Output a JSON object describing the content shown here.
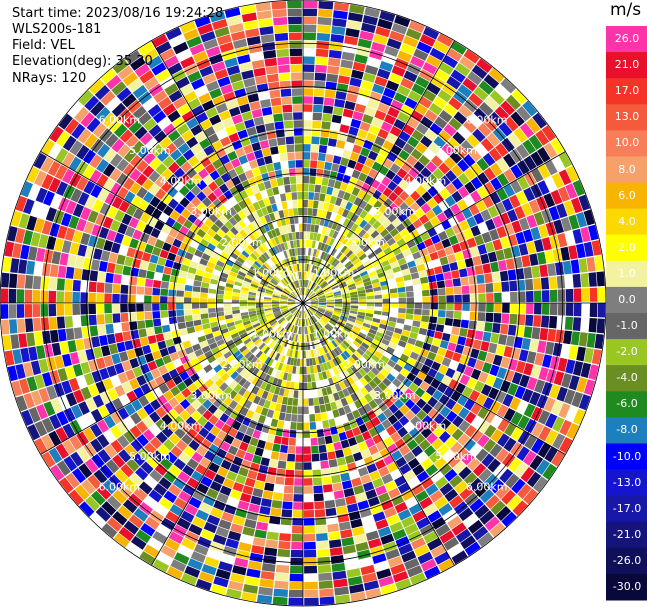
{
  "header": {
    "start_time": "Start time: 2023/08/16 19:24:28",
    "instrument": "WLS200s-181",
    "field": "Field: VEL",
    "elevation": "Elevation(deg): 35.30",
    "nrays": "NRays: 120"
  },
  "colorbar": {
    "unit": "m/s",
    "levels": [
      {
        "label": "26.0",
        "color": "#ff33aa"
      },
      {
        "label": "21.0",
        "color": "#e8102a"
      },
      {
        "label": "17.0",
        "color": "#f53326"
      },
      {
        "label": "13.0",
        "color": "#f65a3c"
      },
      {
        "label": "10.0",
        "color": "#f77e58"
      },
      {
        "label": "8.0",
        "color": "#f6a06a"
      },
      {
        "label": "6.0",
        "color": "#f8b400"
      },
      {
        "label": "4.0",
        "color": "#fbd900"
      },
      {
        "label": "2.0",
        "color": "#ffff00"
      },
      {
        "label": "1.0",
        "color": "#f2f2a0"
      },
      {
        "label": "0.0",
        "color": "#7e7e7e"
      },
      {
        "label": "-1.0",
        "color": "#666666"
      },
      {
        "label": "-2.0",
        "color": "#9ac623"
      },
      {
        "label": "-4.0",
        "color": "#6b8e23"
      },
      {
        "label": "-6.0",
        "color": "#1f8a1f"
      },
      {
        "label": "-8.0",
        "color": "#1e7fbf"
      },
      {
        "label": "-10.0",
        "color": "#0000ff"
      },
      {
        "label": "-13.0",
        "color": "#1515d0"
      },
      {
        "label": "-17.0",
        "color": "#1818a8"
      },
      {
        "label": "-21.0",
        "color": "#14147a"
      },
      {
        "label": "-26.0",
        "color": "#10105a"
      },
      {
        "label": "-30.0",
        "color": "#08083a"
      }
    ]
  },
  "chart_data": {
    "type": "heatmap",
    "projection": "polar PPI",
    "field": "VEL",
    "nrays": 120,
    "range_ring_labels": [
      "1.00km",
      "2.00km",
      "3.00km",
      "4.00km",
      "5.00km",
      "6.00km"
    ],
    "range_rings_km": [
      1,
      2,
      3,
      4,
      5,
      6,
      7
    ],
    "spoke_angles_deg": [
      0,
      30,
      60,
      90,
      120,
      150,
      180,
      210,
      240,
      270,
      300,
      330
    ],
    "grid": true,
    "inner_region_note": "low velocities (yellow / grey / olive) within ~3 km, noisy full-range values beyond"
  }
}
